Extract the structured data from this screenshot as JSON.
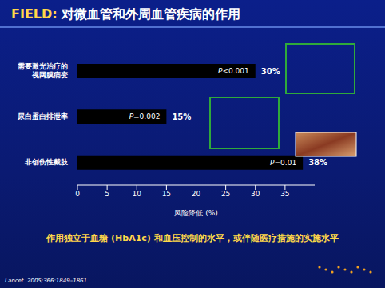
{
  "chart_data": {
    "type": "bar",
    "orientation": "horizontal",
    "title": "FIELD: 对微血管和外周血管疾病的作用",
    "categories": [
      "需要激光治疗的视网膜病变",
      "尿白蛋白排泄率",
      "非创伤性截肢"
    ],
    "values": [
      30,
      15,
      38
    ],
    "value_labels": [
      "30%",
      "15%",
      "38%"
    ],
    "annotations": [
      "P<0.001",
      "P=0.002",
      "P=0.01"
    ],
    "color": "#000000",
    "xlabel": "风险降低 (%)",
    "xlim": [
      0,
      40
    ],
    "xticks": [
      0,
      5,
      10,
      15,
      20,
      25,
      30,
      35
    ],
    "data_labels": true,
    "grid": false,
    "footnote": "作用独立于血糖 (HbA1c) 和血压控制的水平，或伴随医疗措施的实施水平",
    "source": "Lancet. 2005;366:1849–1861"
  }
}
